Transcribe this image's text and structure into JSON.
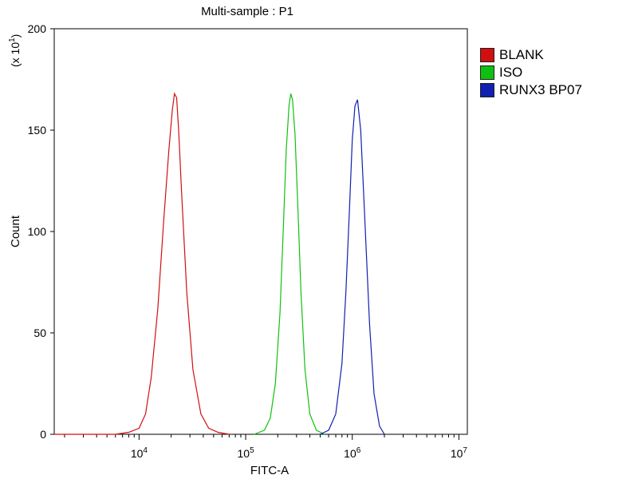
{
  "chart_data": {
    "type": "line",
    "title": "Multi-sample : P1",
    "xlabel": "FITC-A",
    "ylabel": "Count",
    "y_multiplier_label": "(x 10",
    "y_multiplier_exp": "1",
    "y_multiplier_close": ")",
    "x_scale": "log",
    "xlim": [
      1600,
      12000000
    ],
    "ylim": [
      0,
      200
    ],
    "x_ticks": [
      {
        "value": 10000,
        "base": "10",
        "exp": "4"
      },
      {
        "value": 100000,
        "base": "10",
        "exp": "5"
      },
      {
        "value": 1000000,
        "base": "10",
        "exp": "6"
      },
      {
        "value": 10000000,
        "base": "10",
        "exp": "7"
      }
    ],
    "y_ticks": [
      "0",
      "50",
      "100",
      "150",
      "200"
    ],
    "grid": false,
    "legend_position": "right",
    "series": [
      {
        "name": "BLANK",
        "color": "#d01010",
        "x": [
          1600,
          2500,
          4000,
          6000,
          8000,
          10000,
          11500,
          13000,
          15000,
          17000,
          19000,
          20500,
          21500,
          22500,
          23500,
          25000,
          28000,
          32000,
          38000,
          45000,
          55000,
          70000
        ],
        "y": [
          0,
          0,
          0,
          0,
          1,
          3,
          10,
          28,
          62,
          105,
          140,
          160,
          168,
          166,
          150,
          120,
          70,
          32,
          10,
          3,
          1,
          0
        ]
      },
      {
        "name": "ISO",
        "color": "#10c010",
        "x": [
          120000,
          150000,
          170000,
          190000,
          210000,
          225000,
          240000,
          255000,
          265000,
          275000,
          290000,
          310000,
          330000,
          360000,
          400000,
          460000,
          550000
        ],
        "y": [
          0,
          2,
          8,
          25,
          60,
          100,
          140,
          162,
          168,
          165,
          148,
          110,
          70,
          32,
          10,
          2,
          0
        ]
      },
      {
        "name": "RUNX3 BP07",
        "color": "#1020b0",
        "x": [
          500000,
          600000,
          700000,
          800000,
          870000,
          940000,
          1000000,
          1060000,
          1120000,
          1200000,
          1300000,
          1450000,
          1600000,
          1800000,
          2000000
        ],
        "y": [
          0,
          2,
          10,
          35,
          70,
          110,
          145,
          162,
          165,
          150,
          110,
          55,
          20,
          4,
          0
        ]
      }
    ]
  }
}
